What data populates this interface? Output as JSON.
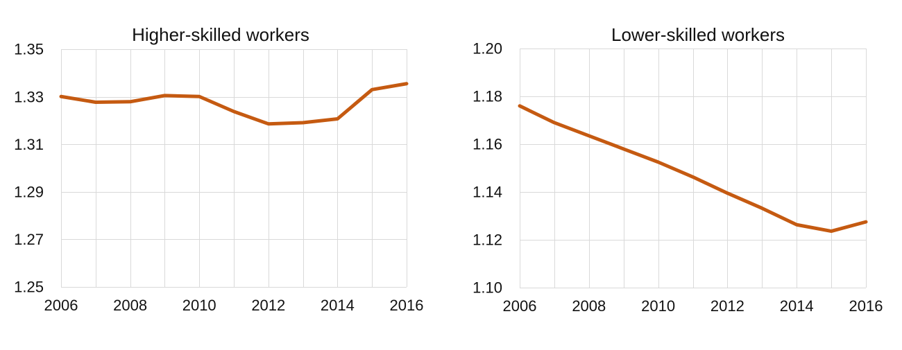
{
  "figure": {
    "background_color": "#ffffff",
    "description": "Two side-by-side line charts, 2006-2016"
  },
  "chart_data": [
    {
      "type": "line",
      "title": "Higher-skilled workers",
      "x": [
        2006,
        2007,
        2008,
        2009,
        2010,
        2011,
        2012,
        2013,
        2014,
        2015,
        2016
      ],
      "series": [
        {
          "name": "Higher-skilled workers",
          "values": [
            1.3301,
            1.3277,
            1.3279,
            1.3305,
            1.3301,
            1.3238,
            1.3186,
            1.3191,
            1.3207,
            1.333,
            1.3355
          ]
        }
      ],
      "xlim": [
        2006,
        2016
      ],
      "ylim": [
        1.25,
        1.35
      ],
      "x_tick_labels": [
        "2006",
        "2008",
        "2010",
        "2012",
        "2014",
        "2016"
      ],
      "y_ticks": [
        1.25,
        1.27,
        1.29,
        1.31,
        1.33,
        1.35
      ],
      "y_tick_labels": [
        "1.25",
        "1.27",
        "1.29",
        "1.31",
        "1.33",
        "1.35"
      ],
      "grid": "on",
      "vertical_gridlines": "every year",
      "horizontal_gridlines": "every 0.02",
      "legend": "none",
      "line_color": "#C55A11",
      "gridline_color": "#D9D9D9",
      "text_color": "#111111"
    },
    {
      "type": "line",
      "title": "Lower-skilled workers",
      "x": [
        2006,
        2007,
        2008,
        2009,
        2010,
        2011,
        2012,
        2013,
        2014,
        2015,
        2016
      ],
      "series": [
        {
          "name": "Lower-skilled workers",
          "values": [
            1.176,
            1.169,
            1.1635,
            1.158,
            1.1525,
            1.1463,
            1.1395,
            1.1332,
            1.1263,
            1.1236,
            1.1275
          ]
        }
      ],
      "xlim": [
        2006,
        2016
      ],
      "ylim": [
        1.1,
        1.2
      ],
      "x_tick_labels": [
        "2006",
        "2008",
        "2010",
        "2012",
        "2014",
        "2016"
      ],
      "y_ticks": [
        1.1,
        1.12,
        1.14,
        1.16,
        1.18,
        1.2
      ],
      "y_tick_labels": [
        "1.10",
        "1.12",
        "1.14",
        "1.16",
        "1.18",
        "1.20"
      ],
      "grid": "on",
      "vertical_gridlines": "every year",
      "horizontal_gridlines": "every 0.02",
      "legend": "none",
      "line_color": "#C55A11",
      "gridline_color": "#D9D9D9",
      "text_color": "#111111"
    }
  ]
}
